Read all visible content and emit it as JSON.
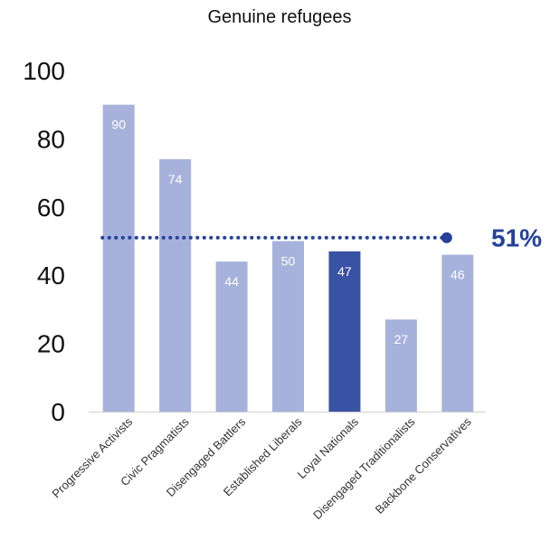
{
  "chart_data": {
    "type": "bar",
    "title": "Genuine refugees",
    "categories": [
      "Progressive Activists",
      "Civic Pragmatists",
      "Disengaged Battlers",
      "Established Liberals",
      "Loyal Nationals",
      "Disengaged Traditionalists",
      "Backbone Conservatives"
    ],
    "values": [
      90,
      74,
      44,
      50,
      47,
      27,
      46
    ],
    "value_labels": [
      "90",
      "74",
      "44",
      "50",
      "47",
      "27",
      "46"
    ],
    "highlight_category": "Loyal Nationals",
    "reference_value": 51,
    "reference_label": "51%",
    "ylim": [
      0,
      100
    ],
    "y_ticks": [
      "0",
      "20",
      "40",
      "60",
      "80",
      "100"
    ],
    "grid": false,
    "xlabel": "",
    "ylabel": ""
  },
  "colors": {
    "bar": "#a7b2dc",
    "bar_highlight": "#3a52a4",
    "reference": "#24429a",
    "axis": "#cfcfcf"
  }
}
